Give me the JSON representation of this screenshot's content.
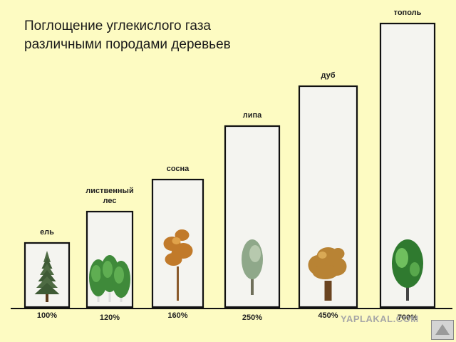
{
  "chart_data": {
    "type": "bar",
    "title_lines": [
      "Поглощение углекислого газа",
      "различными породами деревьев"
    ],
    "categories": [
      "ель",
      "лиственный лес",
      "сосна",
      "липа",
      "дуб",
      "тополь"
    ],
    "category_lines": [
      [
        "ель"
      ],
      [
        "лиственный",
        "лес"
      ],
      [
        "сосна"
      ],
      [
        "липа"
      ],
      [
        "дуб"
      ],
      [
        "тополь"
      ]
    ],
    "values": [
      100,
      120,
      160,
      250,
      450,
      700
    ],
    "value_labels": [
      "100%",
      "120%",
      "160%",
      "250%",
      "450%",
      "700%"
    ],
    "bar_images": [
      "spruce-tree",
      "deciduous-trees",
      "pine-tree",
      "linden-tree",
      "oak-tree",
      "poplar-tree"
    ],
    "bar_fill": "#f4f4f0",
    "bar_stroke": "#111111",
    "background": "#fdfbc2"
  },
  "watermark": "YAPLAKAL.COM"
}
